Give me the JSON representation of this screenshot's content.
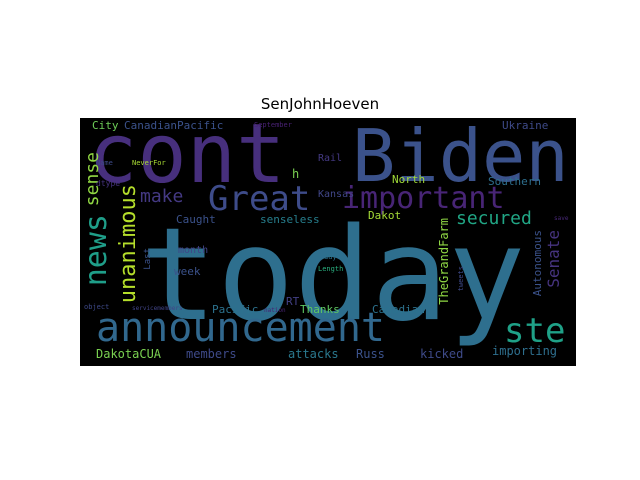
{
  "figure": {
    "title": "SenJohnHoeven"
  },
  "words": {
    "today": "today",
    "cont": "cont",
    "biden": "Biden",
    "announcement": "announcement",
    "great": "Great",
    "important": "important",
    "news": "news",
    "ste": "ste",
    "unanimous": "unanimous",
    "sense": "sense",
    "make": "make",
    "secured": "secured",
    "senate": "Senate",
    "thegrandfarm": "TheGrandFarm",
    "autonomous": "Autonomous",
    "canadianpacific": "CanadianPacific",
    "city": "City",
    "september": "September",
    "ukraine": "Ukraine",
    "name": "Name",
    "neverfor": "NeverFor",
    "dtype": "dtype",
    "rail": "Rail",
    "h": "h",
    "north": "North",
    "southern": "Southern",
    "kansas": "Kansas",
    "caught": "Caught",
    "senseless": "senseless",
    "dakot": "Dakot",
    "save": "save",
    "month": "month",
    "last": "Last",
    "week": "week",
    "day": "day",
    "length": "Length",
    "tweets": "tweets",
    "rt": "RT",
    "pacific": "Pacific",
    "thanks": "Thanks",
    "canadian": "Canadian",
    "object": "object",
    "servicemembers": "servicemembers",
    "nation": "nation",
    "dakotacua": "DakotaCUA",
    "members": "members",
    "attacks": "attacks",
    "russ": "Russ",
    "kicked": "kicked",
    "importing": "importing"
  }
}
